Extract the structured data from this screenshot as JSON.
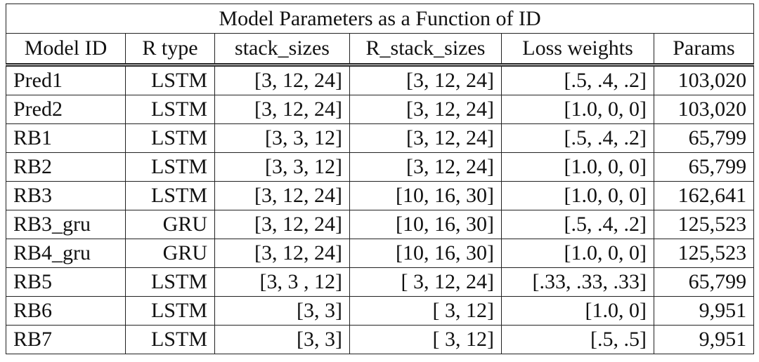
{
  "table": {
    "title": "Model Parameters as a Function of ID",
    "header": [
      "Model ID",
      "R type",
      "stack_sizes",
      "R_stack_sizes",
      "Loss weights",
      "Params"
    ],
    "rows": [
      [
        "Pred1",
        "LSTM",
        "[3, 12, 24]",
        "[3, 12, 24]",
        "[.5, .4, .2]",
        "103,020"
      ],
      [
        "Pred2",
        "LSTM",
        "[3, 12, 24]",
        "[3, 12, 24]",
        "[1.0, 0, 0]",
        "103,020"
      ],
      [
        "RB1",
        "LSTM",
        "[3, 3, 12]",
        "[3, 12, 24]",
        "[.5, .4, .2]",
        "65,799"
      ],
      [
        "RB2",
        "LSTM",
        "[3, 3, 12]",
        "[3, 12, 24]",
        "[1.0, 0, 0]",
        "65,799"
      ],
      [
        "RB3",
        "LSTM",
        "[3, 12, 24]",
        "[10, 16, 30]",
        "[1.0, 0, 0]",
        "162,641"
      ],
      [
        "RB3_gru",
        "GRU",
        "[3, 12, 24]",
        "[10, 16, 30]",
        "[.5, .4, .2]",
        "125,523"
      ],
      [
        "RB4_gru",
        "GRU",
        "[3, 12, 24]",
        "[10, 16, 30]",
        "[1.0, 0, 0]",
        "125,523"
      ],
      [
        "RB5",
        "LSTM",
        "[3, 3 , 12]",
        "[ 3, 12, 24]",
        "[.33, .33, .33]",
        "65,799"
      ],
      [
        "RB6",
        "LSTM",
        "[3, 3]",
        "[ 3, 12]",
        "[1.0, 0]",
        "9,951"
      ],
      [
        "RB7",
        "LSTM",
        "[3, 3]",
        "[ 3, 12]",
        "[.5, .5]",
        "9,951"
      ]
    ]
  }
}
